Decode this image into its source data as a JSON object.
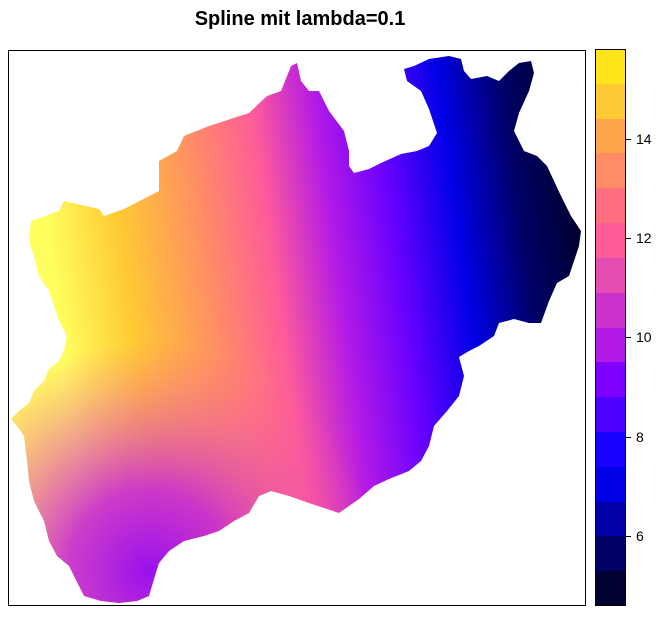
{
  "title": "Spline mit lambda=0.1",
  "legend": {
    "ticks": [
      {
        "value": 6,
        "label": "6"
      },
      {
        "value": 8,
        "label": "8"
      },
      {
        "value": 10,
        "label": "10"
      },
      {
        "value": 12,
        "label": "12"
      },
      {
        "value": 14,
        "label": "14"
      }
    ],
    "breaks": [
      4.6,
      5.3,
      6.0,
      6.7,
      7.4,
      8.1,
      8.8,
      9.5,
      10.2,
      10.9,
      11.6,
      12.3,
      13.0,
      13.7,
      14.4,
      15.1,
      15.8
    ],
    "colors": [
      "#000033",
      "#000066",
      "#0000a6",
      "#0000e6",
      "#1a00ff",
      "#4d00ff",
      "#8000ff",
      "#b31ae6",
      "#cc33cc",
      "#e64db3",
      "#ff5c99",
      "#ff6f80",
      "#ff8c66",
      "#ffa64d",
      "#ffc933",
      "#ffe61a",
      "#ffff60"
    ]
  }
}
